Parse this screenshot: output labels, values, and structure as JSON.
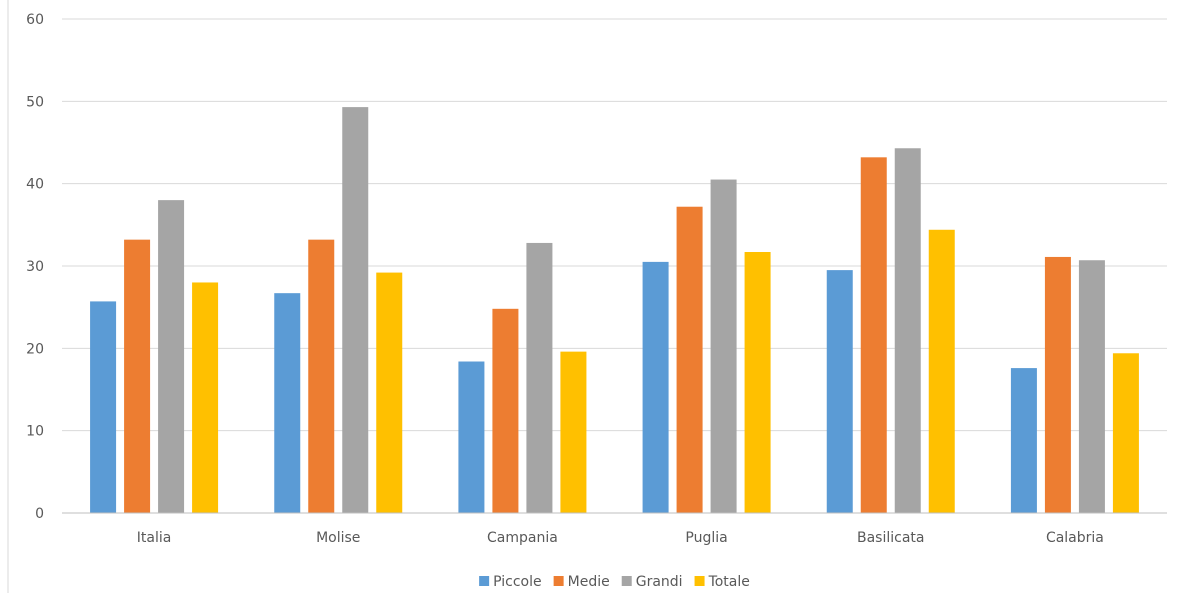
{
  "chart_data": {
    "type": "bar",
    "categories": [
      "Italia",
      "Molise",
      "Campania",
      "Puglia",
      "Basilicata",
      "Calabria"
    ],
    "series": [
      {
        "name": "Piccole",
        "color": "#5B9BD5",
        "values": [
          25.7,
          26.7,
          18.4,
          30.5,
          29.5,
          17.6
        ]
      },
      {
        "name": "Medie",
        "color": "#ED7D31",
        "values": [
          33.2,
          33.2,
          24.8,
          37.2,
          43.2,
          31.1
        ]
      },
      {
        "name": "Grandi",
        "color": "#A5A5A5",
        "values": [
          38.0,
          49.3,
          32.8,
          40.5,
          44.3,
          30.7
        ]
      },
      {
        "name": "Totale",
        "color": "#FFC000",
        "values": [
          28.0,
          29.2,
          19.6,
          31.7,
          34.4,
          19.4
        ]
      }
    ],
    "yticks": [
      "0",
      "10",
      "20",
      "30",
      "40",
      "50",
      "60"
    ],
    "ylim": [
      0,
      60
    ],
    "grid": true,
    "legend_position": "bottom",
    "title": "",
    "xlabel": "",
    "ylabel": ""
  }
}
